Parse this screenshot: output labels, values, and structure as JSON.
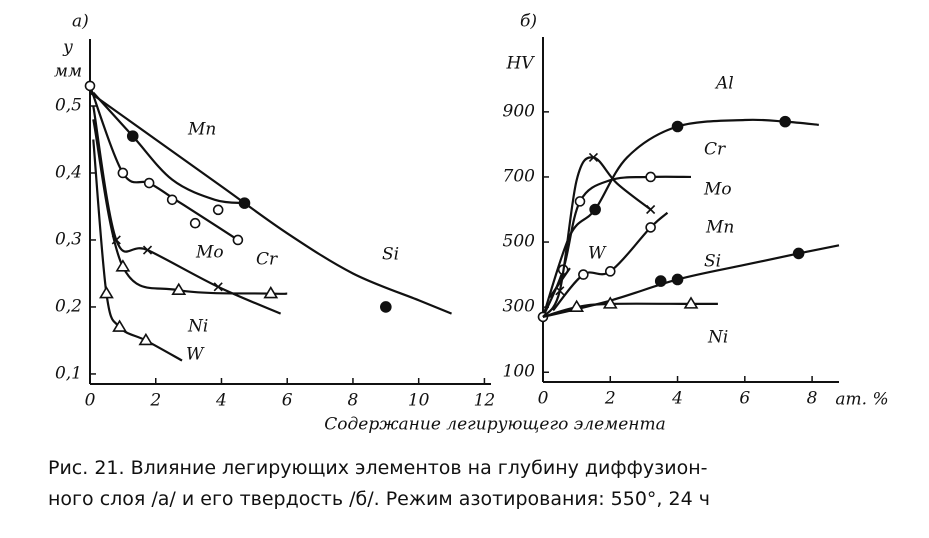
{
  "chart_data": [
    {
      "type": "line",
      "panel": "а)",
      "y_label": "у",
      "y_unit": "мм",
      "xlim": [
        0,
        12.2
      ],
      "ylim": [
        0.085,
        0.6
      ],
      "xticks": [
        0,
        2,
        4,
        6,
        8,
        10,
        12
      ],
      "yticks": [
        {
          "value": 0.1,
          "label": "0,1"
        },
        {
          "value": 0.2,
          "label": "0,2"
        },
        {
          "value": 0.3,
          "label": "0,3"
        },
        {
          "value": 0.4,
          "label": "0,4"
        },
        {
          "value": 0.5,
          "label": "0,5"
        }
      ],
      "series": [
        {
          "name": "Mn",
          "color": "#111",
          "marker": "filled-circle",
          "x": [
            0.1,
            1.3,
            2.5,
            3.8,
            4.7
          ],
          "values": [
            0.52,
            0.455,
            0.39,
            0.36,
            0.355
          ],
          "points": {
            "x": [
              1.3,
              4.7
            ],
            "values": [
              0.455,
              0.355
            ]
          }
        },
        {
          "name": "Cr",
          "color": "#111",
          "marker": "open-circle",
          "x": [
            0,
            1.0,
            1.8,
            2.6,
            3.4,
            4.5
          ],
          "values": [
            0.53,
            0.4,
            0.385,
            0.36,
            0.335,
            0.3
          ],
          "points": {
            "x": [
              0,
              1.0,
              1.8,
              2.5,
              3.2,
              3.9,
              4.5
            ],
            "values": [
              0.53,
              0.4,
              0.385,
              0.36,
              0.325,
              0.345,
              0.3
            ]
          }
        },
        {
          "name": "Mo",
          "color": "#111",
          "marker": "cross",
          "x": [
            0.1,
            0.8,
            1.75,
            3.9,
            5.8
          ],
          "values": [
            0.5,
            0.3,
            0.285,
            0.23,
            0.19
          ],
          "points": {
            "x": [
              0.8,
              1.75,
              3.9
            ],
            "values": [
              0.3,
              0.285,
              0.23
            ]
          }
        },
        {
          "name": "Si",
          "color": "#111",
          "marker": "filled-circle",
          "x": [
            0,
            2,
            4,
            6,
            8,
            10,
            11
          ],
          "values": [
            0.52,
            0.45,
            0.38,
            0.31,
            0.25,
            0.21,
            0.19
          ],
          "points": {
            "x": [
              9
            ],
            "values": [
              0.2
            ]
          }
        },
        {
          "name": "Ni",
          "color": "#111",
          "marker": "triangle",
          "x": [
            0.1,
            1.0,
            2.7,
            5.5,
            6
          ],
          "values": [
            0.48,
            0.26,
            0.225,
            0.22,
            0.22
          ],
          "points": {
            "x": [
              1.0,
              2.7,
              5.5
            ],
            "values": [
              0.26,
              0.225,
              0.22
            ]
          }
        },
        {
          "name": "W",
          "color": "#111",
          "marker": "triangle",
          "x": [
            0.1,
            0.5,
            0.9,
            1.7,
            2.8
          ],
          "values": [
            0.45,
            0.22,
            0.17,
            0.15,
            0.12
          ],
          "points": {
            "x": [
              0.5,
              0.9,
              1.7
            ],
            "values": [
              0.22,
              0.17,
              0.15
            ]
          }
        }
      ]
    },
    {
      "type": "line",
      "panel": "б)",
      "y_label": "HV",
      "x_unit": "ат. %",
      "xlim": [
        0,
        8.8
      ],
      "ylim": [
        70,
        1130
      ],
      "xticks": [
        0,
        2,
        4,
        6,
        8
      ],
      "yticks": [
        100,
        300,
        500,
        700,
        900
      ],
      "series": [
        {
          "name": "Al",
          "color": "#111",
          "marker": "filled-circle",
          "x": [
            0,
            0.8,
            1.55,
            2.5,
            4,
            6,
            7.2,
            8.2
          ],
          "values": [
            270,
            520,
            600,
            760,
            855,
            875,
            870,
            860
          ],
          "points": {
            "x": [
              1.55,
              4,
              7.2
            ],
            "values": [
              600,
              855,
              870
            ]
          }
        },
        {
          "name": "Cr",
          "color": "#111",
          "marker": "open-circle",
          "x": [
            0,
            0.6,
            1.1,
            2.0,
            3.2,
            4.4
          ],
          "values": [
            270,
            415,
            625,
            690,
            700,
            700
          ],
          "points": {
            "x": [
              0,
              0.6,
              1.1,
              3.2
            ],
            "values": [
              270,
              415,
              625,
              700
            ]
          }
        },
        {
          "name": "Mo",
          "color": "#111",
          "marker": "cross",
          "x": [
            0,
            0.5,
            1.0,
            1.5,
            2.2,
            3.2
          ],
          "values": [
            270,
            350,
            690,
            760,
            680,
            600
          ],
          "points": {
            "x": [
              0.5,
              1.5,
              3.2
            ],
            "values": [
              350,
              760,
              600
            ]
          }
        },
        {
          "name": "Mn",
          "color": "#111",
          "marker": "open-circle",
          "x": [
            0.3,
            1.2,
            2.0,
            3.2,
            3.7
          ],
          "values": [
            290,
            400,
            410,
            545,
            590
          ],
          "points": {
            "x": [
              1.2,
              2.0,
              3.2
            ],
            "values": [
              400,
              410,
              545
            ]
          }
        },
        {
          "name": "Si",
          "color": "#111",
          "marker": "filled-circle",
          "x": [
            0,
            2,
            4,
            6,
            7.6,
            8.8
          ],
          "values": [
            270,
            320,
            385,
            430,
            465,
            490
          ],
          "points": {
            "x": [
              3.5,
              4,
              7.6
            ],
            "values": [
              380,
              385,
              465
            ]
          }
        },
        {
          "name": "Ni",
          "color": "#111",
          "marker": "triangle",
          "x": [
            0,
            1,
            2,
            4.4,
            5.2
          ],
          "values": [
            270,
            300,
            310,
            310,
            310
          ],
          "points": {
            "x": [
              1,
              2,
              4.4
            ],
            "values": [
              300,
              310,
              310
            ]
          }
        },
        {
          "name": "W",
          "color": "#111",
          "marker": "none",
          "x": [
            0.2,
            0.8
          ],
          "values": [
            330,
            420
          ],
          "points": {
            "x": [],
            "values": []
          }
        }
      ]
    }
  ],
  "x_label": "Содержание легирующего элемента",
  "caption": [
    "Рис. 21. Влияние легирующих элементов на глубину диффузион-",
    "ного слоя /а/ и его твердость /б/. Режим азотирования: 550°, 24 ч"
  ]
}
